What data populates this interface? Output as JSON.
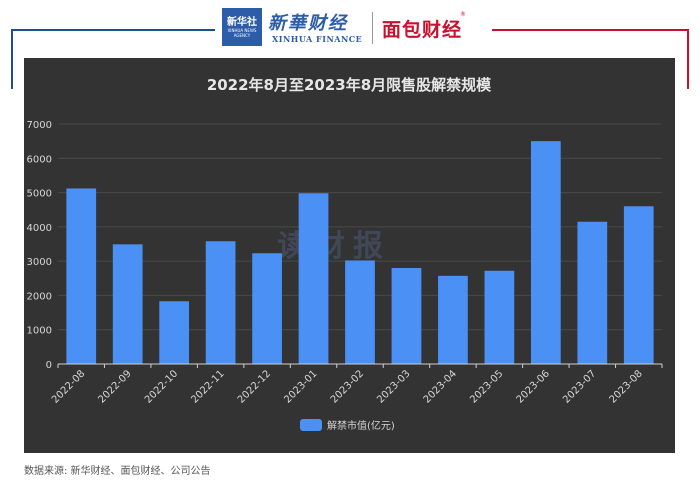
{
  "header": {
    "xinhua_badge": "新华社",
    "xinhua_badge_en": "XINHUA NEWS AGENCY",
    "xinhua_name": "新華财经",
    "xinhua_name_en": "XINHUA FINANCE",
    "mianbao_name": "面包财经",
    "mianbao_mark": "®"
  },
  "watermark": "读财报",
  "source": "数据来源: 新华财经、面包财经、公司公告",
  "colors": {
    "bar": "#4a90f5",
    "chart_bg": "#333333",
    "grid": "#4a4a4a",
    "text": "#d6d6d6"
  },
  "chart_data": {
    "type": "bar",
    "title": "2022年8月至2023年8月限售股解禁规模",
    "categories": [
      "2022-08",
      "2022-09",
      "2022-10",
      "2022-11",
      "2022-12",
      "2023-01",
      "2023-02",
      "2023-03",
      "2023-04",
      "2023-05",
      "2023-06",
      "2023-07",
      "2023-08"
    ],
    "series": [
      {
        "name": "解禁市值(亿元)",
        "values": [
          5120,
          3490,
          1830,
          3580,
          3230,
          4980,
          3020,
          2800,
          2570,
          2720,
          6500,
          4150,
          4600
        ]
      }
    ],
    "ylim": [
      0,
      7000
    ],
    "yticks": [
      0,
      1000,
      2000,
      3000,
      4000,
      5000,
      6000,
      7000
    ],
    "grid": true,
    "legend_position": "bottom-center"
  }
}
